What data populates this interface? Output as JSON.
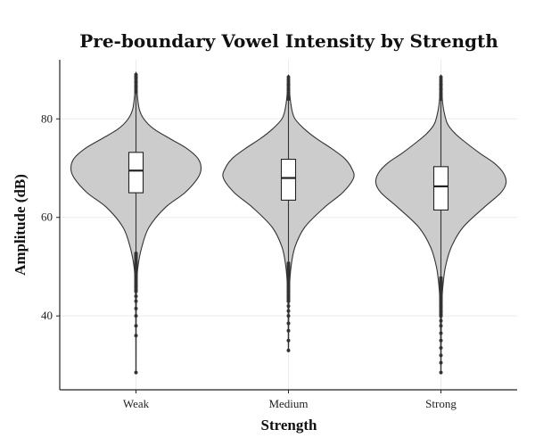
{
  "chart_data": {
    "type": "violin",
    "title": "Pre-boundary Vowel Intensity by Strength",
    "xlabel": "Strength",
    "ylabel": "Amplitude (dB)",
    "ylim": [
      25,
      92
    ],
    "yticks": [
      40,
      60,
      80
    ],
    "grid": true,
    "categories": [
      "Weak",
      "Medium",
      "Strong"
    ],
    "series": [
      {
        "category": "Weak",
        "min": 28.5,
        "q1": 65.0,
        "median": 69.5,
        "q3": 73.2,
        "max": 89.0,
        "whisker_low": 53.0,
        "whisker_high": 85.5,
        "outliers": [
          28.5,
          36,
          38,
          40,
          41.5,
          43,
          44,
          45,
          46,
          47,
          48,
          49,
          50,
          51,
          52,
          86.5,
          87.5,
          88.3,
          89.0
        ],
        "density": [
          [
            28.5,
            0.002
          ],
          [
            40,
            0.004
          ],
          [
            46,
            0.01
          ],
          [
            50,
            0.03
          ],
          [
            54,
            0.09
          ],
          [
            58,
            0.2
          ],
          [
            62,
            0.45
          ],
          [
            65,
            0.75
          ],
          [
            68,
            0.95
          ],
          [
            70,
            1.0
          ],
          [
            72,
            0.95
          ],
          [
            74,
            0.78
          ],
          [
            76,
            0.52
          ],
          [
            78,
            0.27
          ],
          [
            80,
            0.12
          ],
          [
            82,
            0.05
          ],
          [
            85,
            0.02
          ],
          [
            89,
            0.004
          ]
        ]
      },
      {
        "category": "Medium",
        "min": 33.0,
        "q1": 63.5,
        "median": 68.0,
        "q3": 71.8,
        "max": 88.5,
        "whisker_low": 51.0,
        "whisker_high": 84.0,
        "outliers": [
          33,
          35,
          37,
          38.5,
          40,
          41,
          42,
          43,
          44,
          45,
          46,
          47,
          48,
          49,
          50,
          85,
          86,
          87,
          88.5
        ],
        "density": [
          [
            33,
            0.002
          ],
          [
            40,
            0.005
          ],
          [
            45,
            0.012
          ],
          [
            50,
            0.04
          ],
          [
            54,
            0.1
          ],
          [
            58,
            0.25
          ],
          [
            62,
            0.55
          ],
          [
            65,
            0.83
          ],
          [
            68,
            1.0
          ],
          [
            70,
            0.97
          ],
          [
            72,
            0.86
          ],
          [
            74,
            0.66
          ],
          [
            76,
            0.43
          ],
          [
            78,
            0.24
          ],
          [
            80,
            0.1
          ],
          [
            82,
            0.05
          ],
          [
            85,
            0.02
          ],
          [
            88.5,
            0.004
          ]
        ]
      },
      {
        "category": "Strong",
        "min": 28.5,
        "q1": 61.5,
        "median": 66.3,
        "q3": 70.3,
        "max": 88.5,
        "whisker_low": 48.0,
        "whisker_high": 84.0,
        "outliers": [
          28.5,
          30.5,
          32,
          33.5,
          35,
          36.5,
          38,
          39,
          40,
          41,
          42,
          43,
          44,
          45,
          46,
          47,
          85,
          86,
          87,
          88.5
        ],
        "density": [
          [
            28.5,
            0.002
          ],
          [
            36,
            0.005
          ],
          [
            42,
            0.012
          ],
          [
            46,
            0.03
          ],
          [
            50,
            0.07
          ],
          [
            54,
            0.16
          ],
          [
            58,
            0.34
          ],
          [
            62,
            0.66
          ],
          [
            65,
            0.92
          ],
          [
            67,
            1.0
          ],
          [
            69,
            0.96
          ],
          [
            71,
            0.82
          ],
          [
            73,
            0.6
          ],
          [
            75,
            0.4
          ],
          [
            77,
            0.22
          ],
          [
            79,
            0.1
          ],
          [
            82,
            0.04
          ],
          [
            85,
            0.015
          ],
          [
            88.5,
            0.004
          ]
        ]
      }
    ]
  }
}
